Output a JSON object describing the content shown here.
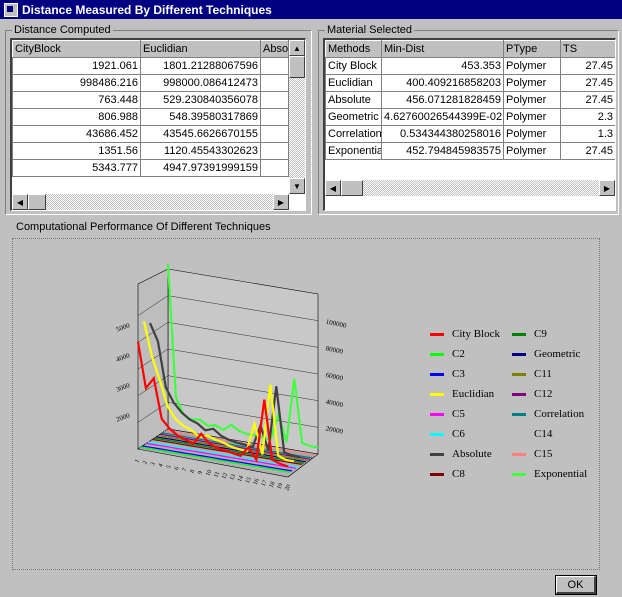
{
  "window": {
    "title": "Distance Measured By Different Techniques"
  },
  "distance_computed": {
    "label": "Distance Computed",
    "columns": [
      "CityBlock",
      "Euclidian",
      "Absolu"
    ],
    "rows": [
      [
        "1921.061",
        "1801.21288067596",
        ""
      ],
      [
        "998486.216",
        "998000.086412473",
        ""
      ],
      [
        "763.448",
        "529.230840356078",
        ""
      ],
      [
        "806.988",
        "548.39580317869",
        ""
      ],
      [
        "43686.452",
        "43545.6626670155",
        ""
      ],
      [
        "1351.56",
        "1120.45543302623",
        ""
      ],
      [
        "5343.777",
        "4947.97391999159",
        ""
      ]
    ]
  },
  "material_selected": {
    "label": "Material Selected",
    "columns": [
      "Methods",
      "Min-Dist",
      "PType",
      "TS"
    ],
    "rows": [
      [
        "City Block",
        "453.353",
        "Polymer",
        "27.45"
      ],
      [
        "Euclidian",
        "400.409216858203",
        "Polymer",
        "27.45"
      ],
      [
        "Absolute",
        "456.071281828459",
        "Polymer",
        "27.45"
      ],
      [
        "Geometric",
        "4.62760026544399E-02",
        "Polymer",
        "2.3"
      ],
      [
        "Correlation",
        "0.534344380258016",
        "Polymer",
        "1.3"
      ],
      [
        "Exponential",
        "452.794845983575",
        "Polymer",
        "27.45"
      ]
    ]
  },
  "chart_section": {
    "label": "Computational Performance Of Different Techniques"
  },
  "chart_data": {
    "type": "line",
    "style": "3d-ribbon",
    "y_tick_labels": [
      "100000",
      "80000",
      "60000",
      "40000",
      "20000"
    ],
    "left_tick_labels": [
      "5000",
      "4000",
      "3000",
      "2000"
    ],
    "series": [
      {
        "name": "City Block",
        "color": "#ff0000",
        "values": [
          3800,
          2200,
          2600,
          1200,
          900,
          700,
          600,
          500,
          900,
          600,
          500,
          450,
          400,
          350,
          700,
          300,
          2500,
          400,
          300,
          250
        ]
      },
      {
        "name": "C2",
        "color": "#00ff00",
        "values": [
          0,
          0,
          0,
          0,
          0,
          0,
          0,
          0,
          0,
          0,
          0,
          0,
          0,
          0,
          0,
          0,
          0,
          0,
          0,
          0
        ]
      },
      {
        "name": "C3",
        "color": "#0000ff",
        "values": [
          0,
          0,
          0,
          0,
          0,
          0,
          0,
          0,
          0,
          0,
          0,
          0,
          0,
          0,
          0,
          0,
          0,
          0,
          0,
          0
        ]
      },
      {
        "name": "Euclidian",
        "color": "#ffff00",
        "values": [
          4400,
          3200,
          2400,
          1500,
          1100,
          900,
          800,
          600,
          700,
          600,
          550,
          450,
          400,
          380,
          1400,
          350,
          2900,
          400,
          300,
          300
        ]
      },
      {
        "name": "C5",
        "color": "#ff00ff",
        "values": [
          0,
          0,
          0,
          0,
          0,
          0,
          0,
          0,
          0,
          0,
          0,
          0,
          0,
          0,
          0,
          0,
          0,
          0,
          0,
          0
        ]
      },
      {
        "name": "C6",
        "color": "#00ffff",
        "values": [
          0,
          0,
          0,
          0,
          0,
          0,
          0,
          0,
          0,
          0,
          0,
          0,
          0,
          0,
          0,
          0,
          0,
          0,
          0,
          0
        ]
      },
      {
        "name": "Absolute",
        "color": "#404040",
        "values": [
          4200,
          3600,
          2000,
          1500,
          1200,
          1000,
          900,
          700,
          800,
          600,
          500,
          450,
          420,
          380,
          1200,
          350,
          2700,
          380,
          320,
          300
        ]
      },
      {
        "name": "C8",
        "color": "#800000",
        "values": [
          0,
          0,
          0,
          0,
          0,
          0,
          0,
          0,
          0,
          0,
          0,
          0,
          0,
          0,
          0,
          0,
          0,
          0,
          0,
          0
        ]
      },
      {
        "name": "C9",
        "color": "#008000",
        "values": [
          0,
          0,
          0,
          0,
          0,
          0,
          0,
          0,
          0,
          0,
          0,
          0,
          0,
          0,
          0,
          0,
          0,
          0,
          0,
          0
        ]
      },
      {
        "name": "Geometric",
        "color": "#000080",
        "values": [
          0,
          0,
          0,
          0,
          0,
          0,
          0,
          0,
          0,
          0,
          0,
          0,
          0,
          0,
          0,
          0,
          0,
          0,
          0,
          0
        ]
      },
      {
        "name": "C11",
        "color": "#808000",
        "values": [
          0,
          0,
          0,
          0,
          0,
          0,
          0,
          0,
          0,
          0,
          0,
          0,
          0,
          0,
          0,
          0,
          0,
          0,
          0,
          0
        ]
      },
      {
        "name": "C12",
        "color": "#800080",
        "values": [
          0,
          0,
          0,
          0,
          0,
          0,
          0,
          0,
          0,
          0,
          0,
          0,
          0,
          0,
          0,
          0,
          0,
          0,
          0,
          0
        ]
      },
      {
        "name": "Correlation",
        "color": "#008080",
        "values": [
          0,
          0,
          0,
          0,
          0,
          0,
          0,
          0,
          0,
          0,
          0,
          0,
          0,
          0,
          0,
          0,
          0,
          0,
          0,
          0
        ]
      },
      {
        "name": "C14",
        "color": "#c0c0c0",
        "values": [
          0,
          0,
          0,
          0,
          0,
          0,
          0,
          0,
          0,
          0,
          0,
          0,
          0,
          0,
          0,
          0,
          0,
          0,
          0,
          0
        ]
      },
      {
        "name": "C15",
        "color": "#ff8080",
        "values": [
          0,
          0,
          0,
          0,
          0,
          0,
          0,
          0,
          0,
          0,
          0,
          0,
          0,
          0,
          0,
          0,
          0,
          0,
          0,
          0
        ]
      },
      {
        "name": "Exponential",
        "color": "#40ff40",
        "values": [
          100000,
          20000,
          10000,
          8000,
          9000,
          6000,
          7000,
          5000,
          9000,
          6000,
          5000,
          5000,
          4500,
          4000,
          20000,
          4000,
          43000,
          5000,
          4000,
          4000
        ]
      }
    ]
  },
  "ok_button": {
    "label": "OK"
  }
}
